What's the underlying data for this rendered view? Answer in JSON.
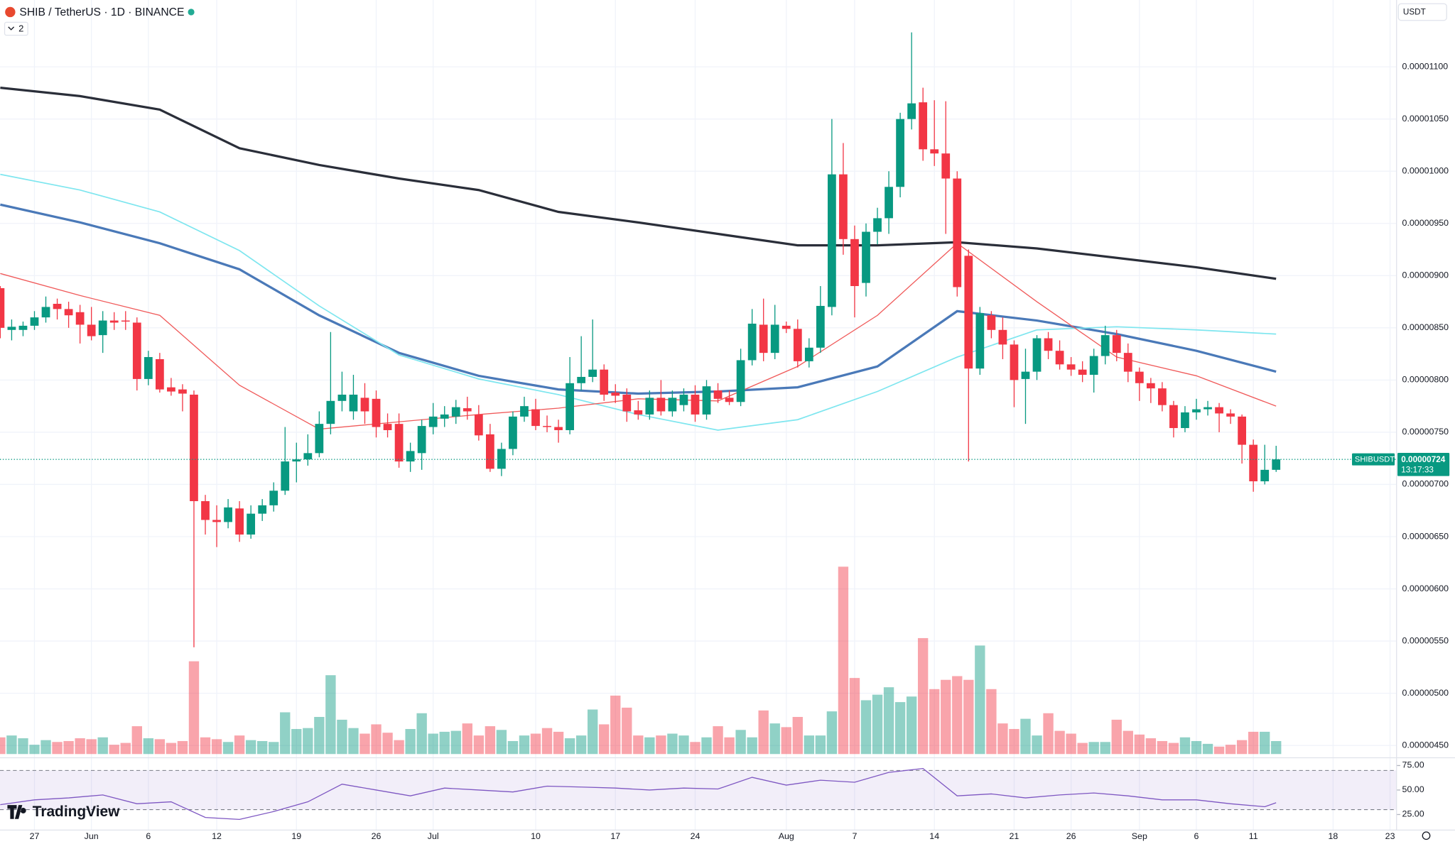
{
  "chart_data": {
    "type": "candlestick",
    "title": "SHIB / TetherUS · 1D · BINANCE",
    "indicator_count": "2",
    "currency": "USDT",
    "symbol_tag": "SHIBUSDT",
    "countdown": "13:17:33",
    "brand": "TradingView",
    "up_color": "#089981",
    "down_color": "#f23645",
    "grid": true,
    "categories": [
      "May 24",
      "May 25",
      "May 26",
      "May 27",
      "May 28",
      "May 29",
      "May 30",
      "May 31",
      "Jun 1",
      "Jun 2",
      "Jun 3",
      "Jun 4",
      "Jun 5",
      "Jun 6",
      "Jun 7",
      "Jun 8",
      "Jun 9",
      "Jun 10",
      "Jun 11",
      "Jun 12",
      "Jun 13",
      "Jun 14",
      "Jun 15",
      "Jun 16",
      "Jun 17",
      "Jun 18",
      "Jun 19",
      "Jun 20",
      "Jun 21",
      "Jun 22",
      "Jun 23",
      "Jun 24",
      "Jun 25",
      "Jun 26",
      "Jun 27",
      "Jun 28",
      "Jun 29",
      "Jun 30",
      "Jul 1",
      "Jul 2",
      "Jul 3",
      "Jul 4",
      "Jul 5",
      "Jul 6",
      "Jul 7",
      "Jul 8",
      "Jul 9",
      "Jul 10",
      "Jul 11",
      "Jul 12",
      "Jul 13",
      "Jul 14",
      "Jul 15",
      "Jul 16",
      "Jul 17",
      "Jul 18",
      "Jul 19",
      "Jul 20",
      "Jul 21",
      "Jul 22",
      "Jul 23",
      "Jul 24",
      "Jul 25",
      "Jul 26",
      "Jul 27",
      "Jul 28",
      "Jul 29",
      "Jul 30",
      "Jul 31",
      "Aug 1",
      "Aug 2",
      "Aug 3",
      "Aug 4",
      "Aug 5",
      "Aug 6",
      "Aug 7",
      "Aug 8",
      "Aug 9",
      "Aug 10",
      "Aug 11",
      "Aug 12",
      "Aug 13",
      "Aug 14",
      "Aug 15",
      "Aug 16",
      "Aug 17",
      "Aug 18",
      "Aug 19",
      "Aug 20",
      "Aug 21",
      "Aug 22",
      "Aug 23",
      "Aug 24",
      "Aug 25",
      "Aug 26",
      "Aug 27",
      "Aug 28",
      "Aug 29",
      "Aug 30",
      "Aug 31",
      "Sep 1",
      "Sep 2",
      "Sep 3",
      "Sep 4",
      "Sep 5",
      "Sep 6",
      "Sep 7",
      "Sep 8",
      "Sep 9",
      "Sep 10",
      "Sep 11",
      "Sep 12",
      "Sep 13"
    ],
    "open": [
      8.88e-06,
      8.48e-06,
      8.48e-06,
      8.52e-06,
      8.6e-06,
      8.73e-06,
      8.68e-06,
      8.65e-06,
      8.53e-06,
      8.43e-06,
      8.57e-06,
      8.57e-06,
      8.55e-06,
      8.01e-06,
      8.2e-06,
      7.93e-06,
      7.91e-06,
      7.86e-06,
      6.84e-06,
      6.66e-06,
      6.64e-06,
      6.77e-06,
      6.52e-06,
      6.72e-06,
      6.8e-06,
      6.94e-06,
      7.22e-06,
      7.24e-06,
      7.3e-06,
      7.58e-06,
      7.8e-06,
      7.7e-06,
      7.83e-06,
      7.82e-06,
      7.58e-06,
      7.58e-06,
      7.22e-06,
      7.3e-06,
      7.55e-06,
      7.63e-06,
      7.65e-06,
      7.73e-06,
      7.67e-06,
      7.48e-06,
      7.15e-06,
      7.34e-06,
      7.65e-06,
      7.72e-06,
      7.56e-06,
      7.55e-06,
      7.52e-06,
      7.97e-06,
      8.03e-06,
      8.1e-06,
      7.88e-06,
      7.86e-06,
      7.71e-06,
      7.67e-06,
      7.83e-06,
      7.7e-06,
      7.76e-06,
      7.86e-06,
      7.67e-06,
      7.9e-06,
      7.83e-06,
      7.79e-06,
      8.19e-06,
      8.53e-06,
      8.26e-06,
      8.52e-06,
      8.49e-06,
      8.18e-06,
      8.31e-06,
      8.7e-06,
      9.97e-06,
      9.35e-06,
      8.93e-06,
      9.42e-06,
      9.55e-06,
      9.85e-06,
      1.05e-05,
      1.066e-05,
      1.021e-05,
      1.017e-05,
      9.93e-06,
      9.19e-06,
      8.11e-06,
      8.62e-06,
      8.48e-06,
      8.34e-06,
      8.01e-06,
      8.08e-06,
      8.4e-06,
      8.28e-06,
      8.15e-06,
      8.1e-06,
      8.05e-06,
      8.23e-06,
      8.43e-06,
      8.26e-06,
      8.08e-06,
      7.97e-06,
      7.92e-06,
      7.76e-06,
      7.54e-06,
      7.69e-06,
      7.72e-06,
      7.74e-06,
      7.68e-06,
      7.65e-06,
      7.38e-06,
      7.03e-06,
      7.14e-06
    ],
    "high": [
      8.9e-06,
      8.58e-06,
      8.56e-06,
      8.66e-06,
      8.8e-06,
      8.78e-06,
      8.75e-06,
      8.72e-06,
      8.7e-06,
      8.66e-06,
      8.65e-06,
      8.66e-06,
      8.6e-06,
      8.28e-06,
      8.26e-06,
      8.02e-06,
      7.96e-06,
      7.9e-06,
      6.9e-06,
      6.8e-06,
      6.86e-06,
      6.84e-06,
      6.8e-06,
      6.86e-06,
      7.02e-06,
      7.55e-06,
      7.4e-06,
      7.48e-06,
      7.7e-06,
      8.46e-06,
      8.08e-06,
      8.05e-06,
      7.97e-06,
      7.9e-06,
      7.68e-06,
      7.68e-06,
      7.4e-06,
      7.62e-06,
      7.78e-06,
      7.75e-06,
      7.81e-06,
      7.84e-06,
      7.76e-06,
      7.58e-06,
      7.4e-06,
      7.7e-06,
      7.84e-06,
      7.82e-06,
      7.66e-06,
      7.62e-06,
      8.22e-06,
      8.42e-06,
      8.58e-06,
      8.15e-06,
      7.96e-06,
      7.92e-06,
      7.8e-06,
      7.9e-06,
      8e-06,
      7.9e-06,
      7.92e-06,
      7.95e-06,
      8e-06,
      7.97e-06,
      7.9e-06,
      8.3e-06,
      8.68e-06,
      8.78e-06,
      8.72e-06,
      8.56e-06,
      8.58e-06,
      8.4e-06,
      8.9e-06,
      1.05e-05,
      1.027e-05,
      9.48e-06,
      9.5e-06,
      9.65e-06,
      1e-05,
      1.056e-05,
      1.133e-05,
      1.08e-05,
      1.068e-05,
      1.067e-05,
      1e-05,
      9.25e-06,
      8.7e-06,
      8.66e-06,
      8.6e-06,
      8.38e-06,
      8.3e-06,
      8.43e-06,
      8.46e-06,
      8.38e-06,
      8.22e-06,
      8.18e-06,
      8.3e-06,
      8.52e-06,
      8.48e-06,
      8.35e-06,
      8.12e-06,
      8.02e-06,
      7.98e-06,
      7.8e-06,
      7.75e-06,
      7.82e-06,
      7.8e-06,
      7.78e-06,
      7.72e-06,
      7.67e-06,
      7.43e-06,
      7.38e-06,
      7.37e-06
    ],
    "low": [
      8.4e-06,
      8.38e-06,
      8.42e-06,
      8.48e-06,
      8.55e-06,
      8.58e-06,
      8.5e-06,
      8.35e-06,
      8.38e-06,
      8.26e-06,
      8.48e-06,
      8.48e-06,
      7.9e-06,
      7.95e-06,
      7.88e-06,
      7.85e-06,
      7.7e-06,
      5.44e-06,
      6.52e-06,
      6.4e-06,
      6.58e-06,
      6.45e-06,
      6.48e-06,
      6.65e-06,
      6.74e-06,
      6.9e-06,
      7.02e-06,
      7.18e-06,
      7.26e-06,
      7.48e-06,
      7.7e-06,
      7.62e-06,
      7.58e-06,
      7.45e-06,
      7.45e-06,
      7.16e-06,
      7.12e-06,
      7.14e-06,
      7.48e-06,
      7.55e-06,
      7.58e-06,
      7.62e-06,
      7.42e-06,
      7.12e-06,
      7.08e-06,
      7.28e-06,
      7.6e-06,
      7.52e-06,
      7.5e-06,
      7.4e-06,
      7.48e-06,
      7.9e-06,
      7.98e-06,
      7.8e-06,
      7.78e-06,
      7.6e-06,
      7.62e-06,
      7.62e-06,
      7.66e-06,
      7.65e-06,
      7.7e-06,
      7.6e-06,
      7.62e-06,
      7.78e-06,
      7.76e-06,
      7.75e-06,
      8.14e-06,
      8.18e-06,
      8.2e-06,
      8.45e-06,
      8.12e-06,
      8.12e-06,
      8.26e-06,
      8.62e-06,
      9.2e-06,
      8.6e-06,
      8.8e-06,
      9.3e-06,
      9.4e-06,
      9.75e-06,
      1.04e-05,
      1.01e-05,
      1.005e-05,
      9.4e-06,
      8.8e-06,
      7.22e-06,
      8.05e-06,
      8.4e-06,
      8.2e-06,
      7.74e-06,
      7.58e-06,
      8e-06,
      8.2e-06,
      8.1e-06,
      8.04e-06,
      7.98e-06,
      7.88e-06,
      8.15e-06,
      8.18e-06,
      7.98e-06,
      7.8e-06,
      7.78e-06,
      7.7e-06,
      7.45e-06,
      7.5e-06,
      7.62e-06,
      7.66e-06,
      7.5e-06,
      7.58e-06,
      7.2e-06,
      6.93e-06,
      7e-06,
      7.12e-06
    ],
    "close": [
      8.5e-06,
      8.51e-06,
      8.52e-06,
      8.6e-06,
      8.7e-06,
      8.68e-06,
      8.62e-06,
      8.53e-06,
      8.42e-06,
      8.57e-06,
      8.55e-06,
      8.56e-06,
      8.01e-06,
      8.22e-06,
      7.91e-06,
      7.89e-06,
      7.87e-06,
      6.84e-06,
      6.66e-06,
      6.64e-06,
      6.78e-06,
      6.52e-06,
      6.72e-06,
      6.8e-06,
      6.94e-06,
      7.22e-06,
      7.24e-06,
      7.3e-06,
      7.58e-06,
      7.8e-06,
      7.86e-06,
      7.86e-06,
      7.7e-06,
      7.55e-06,
      7.52e-06,
      7.22e-06,
      7.32e-06,
      7.56e-06,
      7.65e-06,
      7.67e-06,
      7.74e-06,
      7.7e-06,
      7.47e-06,
      7.15e-06,
      7.34e-06,
      7.65e-06,
      7.75e-06,
      7.56e-06,
      7.55e-06,
      7.52e-06,
      7.97e-06,
      8.03e-06,
      8.1e-06,
      7.86e-06,
      7.85e-06,
      7.7e-06,
      7.67e-06,
      7.83e-06,
      7.7e-06,
      7.83e-06,
      7.86e-06,
      7.67e-06,
      7.94e-06,
      7.82e-06,
      7.79e-06,
      8.19e-06,
      8.54e-06,
      8.26e-06,
      8.53e-06,
      8.49e-06,
      8.18e-06,
      8.31e-06,
      8.71e-06,
      9.97e-06,
      9.35e-06,
      8.9e-06,
      9.42e-06,
      9.55e-06,
      9.85e-06,
      1.05e-05,
      1.065e-05,
      1.021e-05,
      1.017e-05,
      9.93e-06,
      8.89e-06,
      8.11e-06,
      8.64e-06,
      8.48e-06,
      8.34e-06,
      8e-06,
      8.08e-06,
      8.4e-06,
      8.28e-06,
      8.15e-06,
      8.1e-06,
      8.05e-06,
      8.23e-06,
      8.43e-06,
      8.26e-06,
      8.08e-06,
      7.97e-06,
      7.92e-06,
      7.76e-06,
      7.54e-06,
      7.69e-06,
      7.72e-06,
      7.74e-06,
      7.68e-06,
      7.65e-06,
      7.38e-06,
      7.03e-06,
      7.14e-06,
      7.24e-06
    ],
    "volume": [
      18,
      20,
      17,
      10,
      15,
      13,
      14,
      17,
      16,
      18,
      10,
      12,
      30,
      17,
      16,
      12,
      14,
      100,
      18,
      16,
      13,
      20,
      15,
      14,
      13,
      45,
      27,
      28,
      40,
      85,
      37,
      28,
      22,
      32,
      23,
      15,
      27,
      44,
      22,
      24,
      25,
      33,
      20,
      30,
      26,
      14,
      20,
      22,
      28,
      24,
      17,
      20,
      48,
      32,
      63,
      50,
      20,
      18,
      20,
      22,
      20,
      13,
      18,
      30,
      18,
      26,
      18,
      47,
      33,
      29,
      40,
      20,
      20,
      46,
      202,
      82,
      58,
      64,
      72,
      56,
      62,
      125,
      70,
      80,
      84,
      80,
      117,
      70,
      33,
      27,
      38,
      20,
      44,
      25,
      22,
      12,
      13,
      13,
      37,
      25,
      21,
      17,
      14,
      12,
      18,
      14,
      11,
      8,
      10,
      15,
      24,
      24,
      14
    ],
    "last_price": 7.24e-06,
    "xlim": [
      "May 24",
      "Sep 23"
    ],
    "xticks": [
      {
        "value": "May 27",
        "label": "27"
      },
      {
        "value": "Jun 1",
        "label": "Jun"
      },
      {
        "value": "Jun 6",
        "label": "6"
      },
      {
        "value": "Jun 12",
        "label": "12"
      },
      {
        "value": "Jun 19",
        "label": "19"
      },
      {
        "value": "Jun 26",
        "label": "26"
      },
      {
        "value": "Jul 1",
        "label": "Jul"
      },
      {
        "value": "Jul 10",
        "label": "10"
      },
      {
        "value": "Jul 17",
        "label": "17"
      },
      {
        "value": "Jul 24",
        "label": "24"
      },
      {
        "value": "Aug 1",
        "label": "Aug"
      },
      {
        "value": "Aug 7",
        "label": "7"
      },
      {
        "value": "Aug 14",
        "label": "14"
      },
      {
        "value": "Aug 21",
        "label": "21"
      },
      {
        "value": "Aug 26",
        "label": "26"
      },
      {
        "value": "Sep 1",
        "label": "Sep"
      },
      {
        "value": "Sep 6",
        "label": "6"
      },
      {
        "value": "Sep 11",
        "label": "11"
      },
      {
        "value": "Sep 18",
        "label": "18"
      },
      {
        "value": "Sep 23",
        "label": "23"
      }
    ],
    "ylim": [
      4.4e-06,
      1.164e-05
    ],
    "yticks": [
      {
        "value": 4.5e-06,
        "label": "0.00000450"
      },
      {
        "value": 5e-06,
        "label": "0.00000500"
      },
      {
        "value": 5.5e-06,
        "label": "0.00000550"
      },
      {
        "value": 6e-06,
        "label": "0.00000600"
      },
      {
        "value": 6.5e-06,
        "label": "0.00000650"
      },
      {
        "value": 7e-06,
        "label": "0.00000700"
      },
      {
        "value": 7.5e-06,
        "label": "0.00000750"
      },
      {
        "value": 8e-06,
        "label": "0.00000800"
      },
      {
        "value": 8.5e-06,
        "label": "0.00000850"
      },
      {
        "value": 9e-06,
        "label": "0.00000900"
      },
      {
        "value": 9.5e-06,
        "label": "0.00000950"
      },
      {
        "value": 1e-05,
        "label": "0.00001000"
      },
      {
        "value": 1.05e-05,
        "label": "0.00001050"
      },
      {
        "value": 1.1e-05,
        "label": "0.00001100"
      }
    ],
    "moving_averages": [
      {
        "color": "#2a2e39",
        "width": 2.5,
        "x": [
          "May 24",
          "May 31",
          "Jun 7",
          "Jun 14",
          "Jun 21",
          "Jun 28",
          "Jul 5",
          "Jul 12",
          "Jul 19",
          "Jul 26",
          "Aug 2",
          "Aug 9",
          "Aug 16",
          "Aug 23",
          "Aug 30",
          "Sep 6",
          "Sep 13"
        ],
        "values": [
          1.08e-05,
          1.072e-05,
          1.059e-05,
          1.022e-05,
          1.006e-05,
          9.93e-06,
          9.82e-06,
          9.61e-06,
          9.51e-06,
          9.4e-06,
          9.29e-06,
          9.29e-06,
          9.32e-06,
          9.26e-06,
          9.17e-06,
          9.08e-06,
          8.97e-06
        ]
      },
      {
        "color": "#4a79b8",
        "width": 2.5,
        "x": [
          "May 24",
          "May 31",
          "Jun 7",
          "Jun 14",
          "Jun 21",
          "Jun 28",
          "Jul 5",
          "Jul 12",
          "Jul 19",
          "Jul 26",
          "Aug 2",
          "Aug 9",
          "Aug 16",
          "Aug 23",
          "Aug 30",
          "Sep 6",
          "Sep 13"
        ],
        "values": [
          9.68e-06,
          9.51e-06,
          9.31e-06,
          9.06e-06,
          8.62e-06,
          8.26e-06,
          8.04e-06,
          7.91e-06,
          7.87e-06,
          7.89e-06,
          7.93e-06,
          8.13e-06,
          8.66e-06,
          8.57e-06,
          8.44e-06,
          8.28e-06,
          8.08e-06
        ]
      },
      {
        "color": "#7ee6ef",
        "width": 1.3,
        "x": [
          "May 24",
          "May 31",
          "Jun 7",
          "Jun 14",
          "Jun 21",
          "Jun 28",
          "Jul 5",
          "Jul 12",
          "Jul 19",
          "Jul 26",
          "Aug 2",
          "Aug 9",
          "Aug 16",
          "Aug 23",
          "Aug 30",
          "Sep 6",
          "Sep 13"
        ],
        "values": [
          9.97e-06,
          9.82e-06,
          9.61e-06,
          9.24e-06,
          8.71e-06,
          8.24e-06,
          8.01e-06,
          7.86e-06,
          7.67e-06,
          7.52e-06,
          7.62e-06,
          7.89e-06,
          8.22e-06,
          8.48e-06,
          8.51e-06,
          8.48e-06,
          8.44e-06
        ]
      },
      {
        "color": "#f05a5a",
        "width": 1,
        "x": [
          "May 24",
          "May 31",
          "Jun 7",
          "Jun 14",
          "Jun 21",
          "Jun 28",
          "Jul 5",
          "Jul 12",
          "Jul 19",
          "Jul 26",
          "Aug 2",
          "Aug 9",
          "Aug 16",
          "Aug 23",
          "Aug 30",
          "Sep 6",
          "Sep 13"
        ],
        "values": [
          9.02e-06,
          8.81e-06,
          8.62e-06,
          7.95e-06,
          7.53e-06,
          7.6e-06,
          7.67e-06,
          7.73e-06,
          7.82e-06,
          7.8e-06,
          8.13e-06,
          8.62e-06,
          9.31e-06,
          8.75e-06,
          8.22e-06,
          8.04e-06,
          7.75e-06
        ]
      }
    ],
    "rsi": {
      "color": "#7e57c2",
      "band": [
        30,
        70
      ],
      "ylim": [
        11,
        82
      ],
      "yticks": [
        {
          "value": 75,
          "label": "75.00"
        },
        {
          "value": 50,
          "label": "50.00"
        },
        {
          "value": 25,
          "label": "25.00"
        }
      ],
      "x": [
        "May 24",
        "May 27",
        "May 30",
        "Jun 2",
        "Jun 5",
        "Jun 8",
        "Jun 11",
        "Jun 14",
        "Jun 17",
        "Jun 20",
        "Jun 23",
        "Jun 26",
        "Jun 29",
        "Jul 2",
        "Jul 5",
        "Jul 8",
        "Jul 11",
        "Jul 14",
        "Jul 17",
        "Jul 20",
        "Jul 23",
        "Jul 26",
        "Jul 29",
        "Aug 1",
        "Aug 4",
        "Aug 7",
        "Aug 10",
        "Aug 13",
        "Aug 16",
        "Aug 19",
        "Aug 22",
        "Aug 25",
        "Aug 28",
        "Aug 31",
        "Sep 3",
        "Sep 6",
        "Sep 9",
        "Sep 12",
        "Sep 13"
      ],
      "values": [
        35,
        40,
        42,
        45,
        36,
        38,
        22,
        20,
        28,
        38,
        56,
        50,
        44,
        52,
        50,
        48,
        54,
        53,
        52,
        50,
        52,
        51,
        63,
        55,
        60,
        58,
        68,
        72,
        44,
        46,
        42,
        45,
        47,
        44,
        40,
        40,
        36,
        33,
        37
      ]
    }
  }
}
